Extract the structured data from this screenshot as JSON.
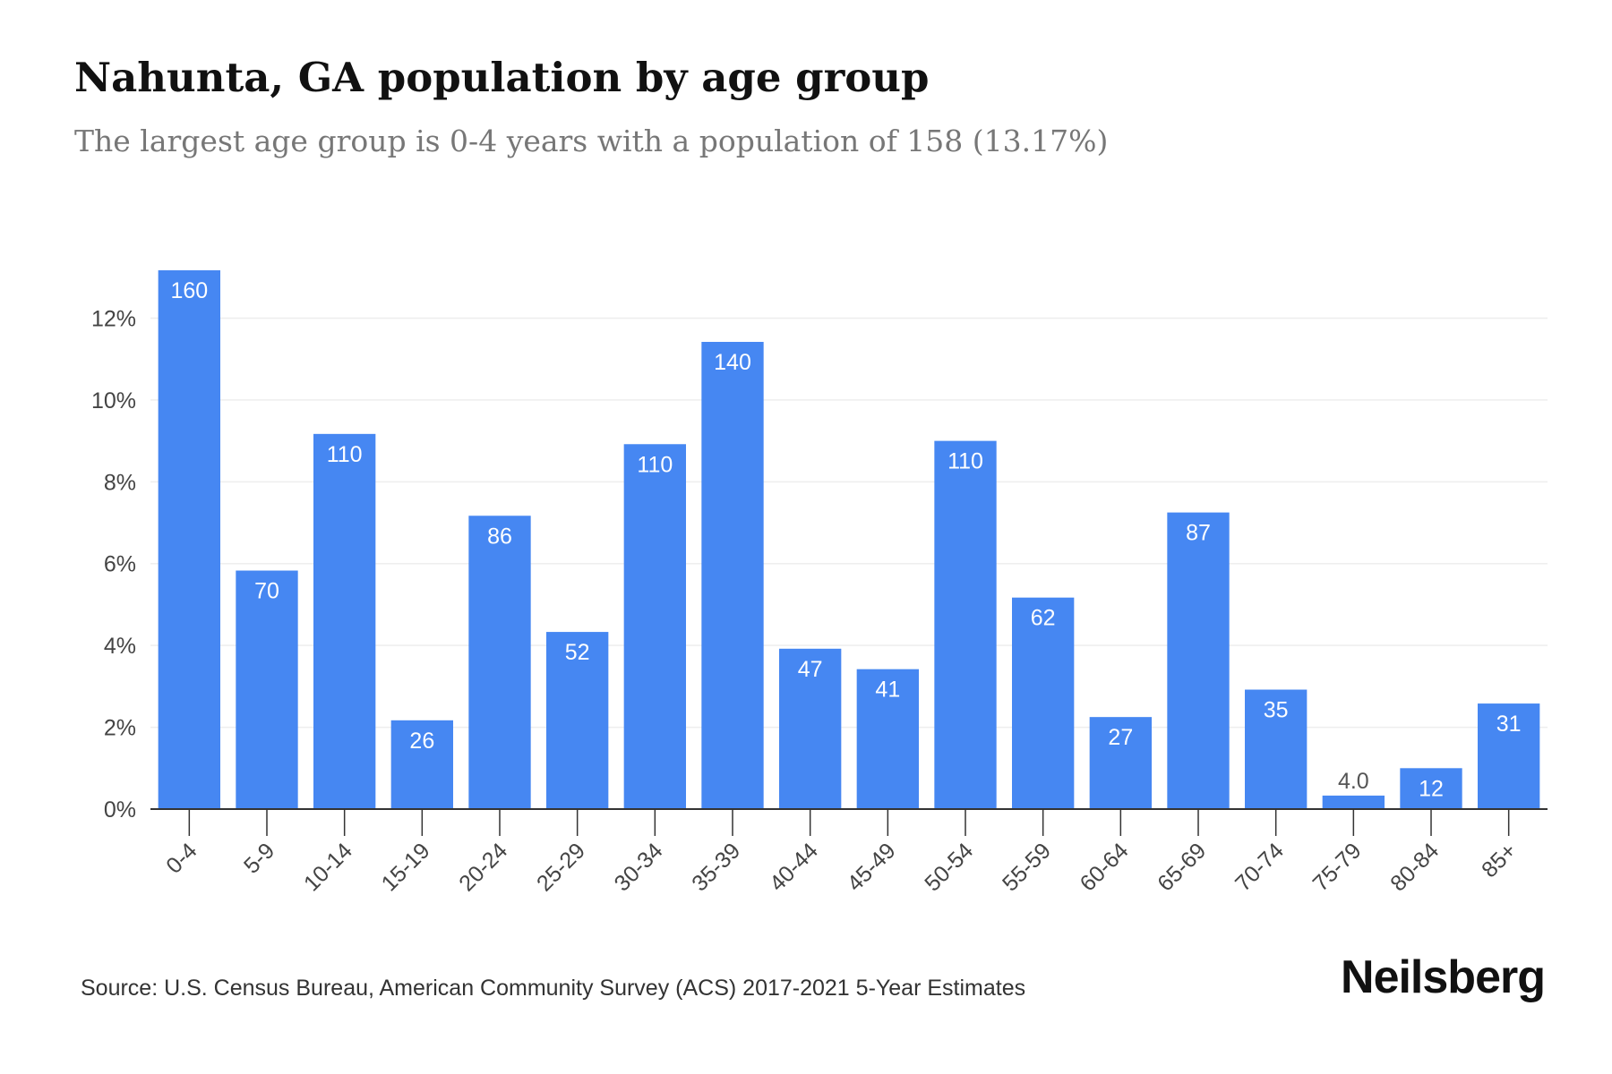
{
  "title": "Nahunta, GA population by age group",
  "subtitle": "The largest age group is 0-4 years with a population of 158 (13.17%)",
  "source": "Source: U.S. Census Bureau, American Community Survey (ACS) 2017-2021 5-Year Estimates",
  "brand": "Neilsberg",
  "colors": {
    "bar": "#4687f2",
    "label": "#ffffff",
    "axis": "#333333",
    "grid": "#eeeeee",
    "tick_text": "#444444"
  },
  "chart_data": {
    "type": "bar",
    "categories": [
      "0-4",
      "5-9",
      "10-14",
      "15-19",
      "20-24",
      "25-29",
      "30-34",
      "35-39",
      "40-44",
      "45-49",
      "50-54",
      "55-59",
      "60-64",
      "65-69",
      "70-74",
      "75-79",
      "80-84",
      "85+"
    ],
    "values": [
      13.17,
      5.83,
      9.17,
      2.17,
      7.17,
      4.33,
      8.92,
      11.42,
      3.92,
      3.42,
      9.0,
      5.17,
      2.25,
      7.25,
      2.92,
      0.33,
      1.0,
      2.58
    ],
    "data_labels": [
      "160",
      "70",
      "110",
      "26",
      "86",
      "52",
      "110",
      "140",
      "47",
      "41",
      "110",
      "62",
      "27",
      "87",
      "35",
      "4.0",
      "12",
      "31"
    ],
    "yticks": [
      0,
      2,
      4,
      6,
      8,
      10,
      12
    ],
    "ytick_labels": [
      "0%",
      "2%",
      "4%",
      "6%",
      "8%",
      "10%",
      "12%"
    ],
    "ylim": [
      0,
      13.17
    ],
    "grid": true,
    "legend": "none"
  }
}
